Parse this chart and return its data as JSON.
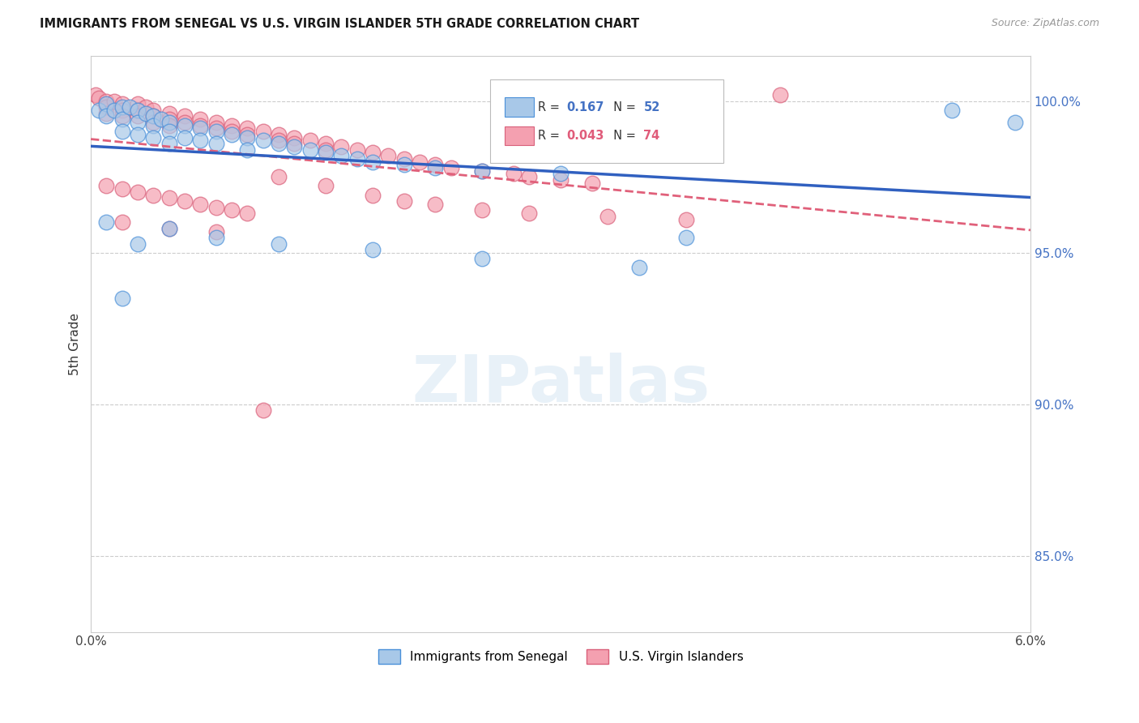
{
  "title": "IMMIGRANTS FROM SENEGAL VS U.S. VIRGIN ISLANDER 5TH GRADE CORRELATION CHART",
  "source": "Source: ZipAtlas.com",
  "ylabel": "5th Grade",
  "yticks": [
    0.85,
    0.9,
    0.95,
    1.0
  ],
  "ytick_labels": [
    "85.0%",
    "90.0%",
    "95.0%",
    "100.0%"
  ],
  "xmin": 0.0,
  "xmax": 0.06,
  "ymin": 0.825,
  "ymax": 1.015,
  "legend_r1_val": "0.167",
  "legend_n1_val": "52",
  "legend_r2_val": "0.043",
  "legend_n2_val": "74",
  "blue_color": "#a8c8e8",
  "blue_edge_color": "#4a90d9",
  "pink_color": "#f4a0b0",
  "pink_edge_color": "#d9607a",
  "blue_line_color": "#3060c0",
  "pink_line_color": "#e0607a",
  "watermark": "ZIPatlas",
  "blue_scatter_x": [
    0.0005,
    0.001,
    0.001,
    0.0015,
    0.002,
    0.002,
    0.002,
    0.0025,
    0.003,
    0.003,
    0.003,
    0.0035,
    0.004,
    0.004,
    0.004,
    0.0045,
    0.005,
    0.005,
    0.005,
    0.006,
    0.006,
    0.007,
    0.007,
    0.008,
    0.008,
    0.009,
    0.01,
    0.01,
    0.011,
    0.012,
    0.013,
    0.014,
    0.015,
    0.016,
    0.017,
    0.018,
    0.02,
    0.022,
    0.025,
    0.03,
    0.003,
    0.005,
    0.008,
    0.012,
    0.018,
    0.025,
    0.035,
    0.038,
    0.055,
    0.059,
    0.001,
    0.002
  ],
  "blue_scatter_y": [
    0.997,
    0.999,
    0.995,
    0.997,
    0.998,
    0.994,
    0.99,
    0.998,
    0.997,
    0.993,
    0.989,
    0.996,
    0.995,
    0.992,
    0.988,
    0.994,
    0.993,
    0.99,
    0.986,
    0.992,
    0.988,
    0.991,
    0.987,
    0.99,
    0.986,
    0.989,
    0.988,
    0.984,
    0.987,
    0.986,
    0.985,
    0.984,
    0.983,
    0.982,
    0.981,
    0.98,
    0.979,
    0.978,
    0.977,
    0.976,
    0.953,
    0.958,
    0.955,
    0.953,
    0.951,
    0.948,
    0.945,
    0.955,
    0.997,
    0.993,
    0.96,
    0.935
  ],
  "pink_scatter_x": [
    0.0003,
    0.0005,
    0.001,
    0.001,
    0.001,
    0.0015,
    0.002,
    0.002,
    0.002,
    0.003,
    0.003,
    0.003,
    0.0035,
    0.004,
    0.004,
    0.004,
    0.005,
    0.005,
    0.005,
    0.006,
    0.006,
    0.007,
    0.007,
    0.008,
    0.008,
    0.009,
    0.009,
    0.01,
    0.01,
    0.011,
    0.012,
    0.012,
    0.013,
    0.013,
    0.014,
    0.015,
    0.015,
    0.016,
    0.017,
    0.018,
    0.019,
    0.02,
    0.021,
    0.022,
    0.023,
    0.025,
    0.027,
    0.028,
    0.03,
    0.032,
    0.001,
    0.002,
    0.003,
    0.004,
    0.005,
    0.006,
    0.007,
    0.008,
    0.009,
    0.01,
    0.012,
    0.015,
    0.018,
    0.02,
    0.022,
    0.025,
    0.028,
    0.033,
    0.038,
    0.044,
    0.002,
    0.005,
    0.008,
    0.011
  ],
  "pink_scatter_y": [
    1.002,
    1.001,
    1.0,
    0.998,
    0.996,
    1.0,
    0.999,
    0.997,
    0.995,
    0.999,
    0.997,
    0.995,
    0.998,
    0.997,
    0.995,
    0.993,
    0.996,
    0.994,
    0.992,
    0.995,
    0.993,
    0.994,
    0.992,
    0.993,
    0.991,
    0.992,
    0.99,
    0.991,
    0.989,
    0.99,
    0.989,
    0.987,
    0.988,
    0.986,
    0.987,
    0.986,
    0.984,
    0.985,
    0.984,
    0.983,
    0.982,
    0.981,
    0.98,
    0.979,
    0.978,
    0.977,
    0.976,
    0.975,
    0.974,
    0.973,
    0.972,
    0.971,
    0.97,
    0.969,
    0.968,
    0.967,
    0.966,
    0.965,
    0.964,
    0.963,
    0.975,
    0.972,
    0.969,
    0.967,
    0.966,
    0.964,
    0.963,
    0.962,
    0.961,
    1.002,
    0.96,
    0.958,
    0.957,
    0.898
  ]
}
